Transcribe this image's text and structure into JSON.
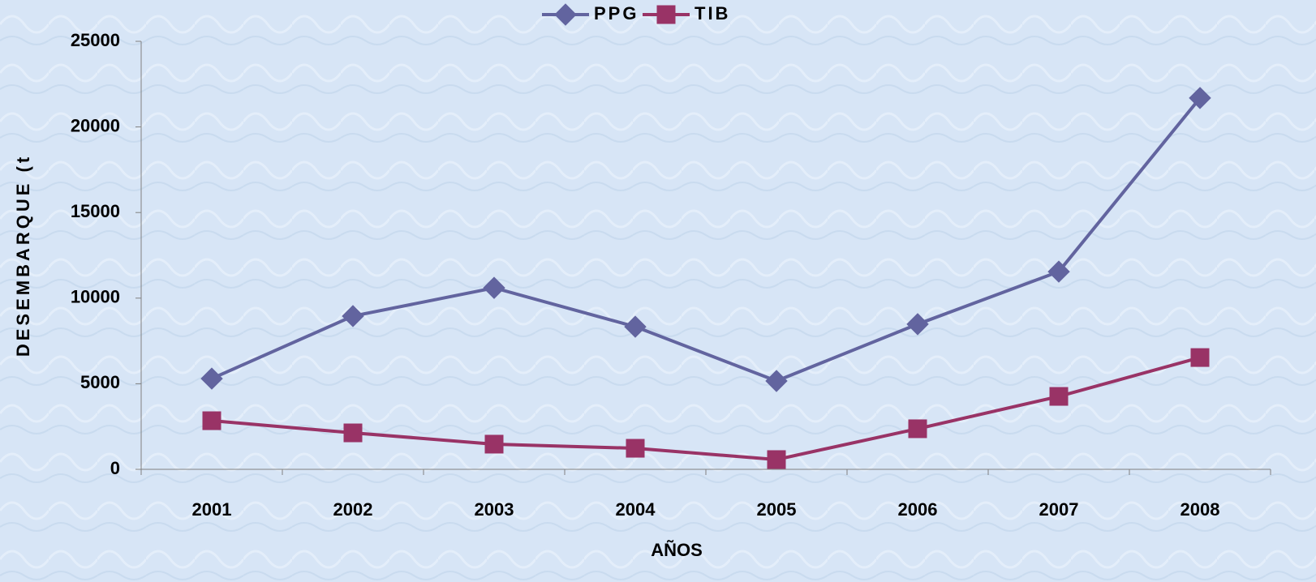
{
  "chart_data": {
    "type": "line",
    "categories": [
      "2001",
      "2002",
      "2003",
      "2004",
      "2005",
      "2006",
      "2007",
      "2008"
    ],
    "series": [
      {
        "name": "PPG",
        "color": "#62649f",
        "marker": "diamond",
        "values": [
          5300,
          8950,
          10600,
          8330,
          5160,
          8480,
          11550,
          21690
        ]
      },
      {
        "name": "TIB",
        "color": "#993366",
        "marker": "square",
        "values": [
          2840,
          2130,
          1470,
          1230,
          570,
          2370,
          4260,
          6530
        ]
      }
    ],
    "ylim": [
      0,
      25000
    ],
    "yticks": [
      0,
      5000,
      10000,
      15000,
      20000,
      25000
    ],
    "xlabel": "AÑOS",
    "ylabel": "DESEMBARQUE (t",
    "legend": "top"
  }
}
